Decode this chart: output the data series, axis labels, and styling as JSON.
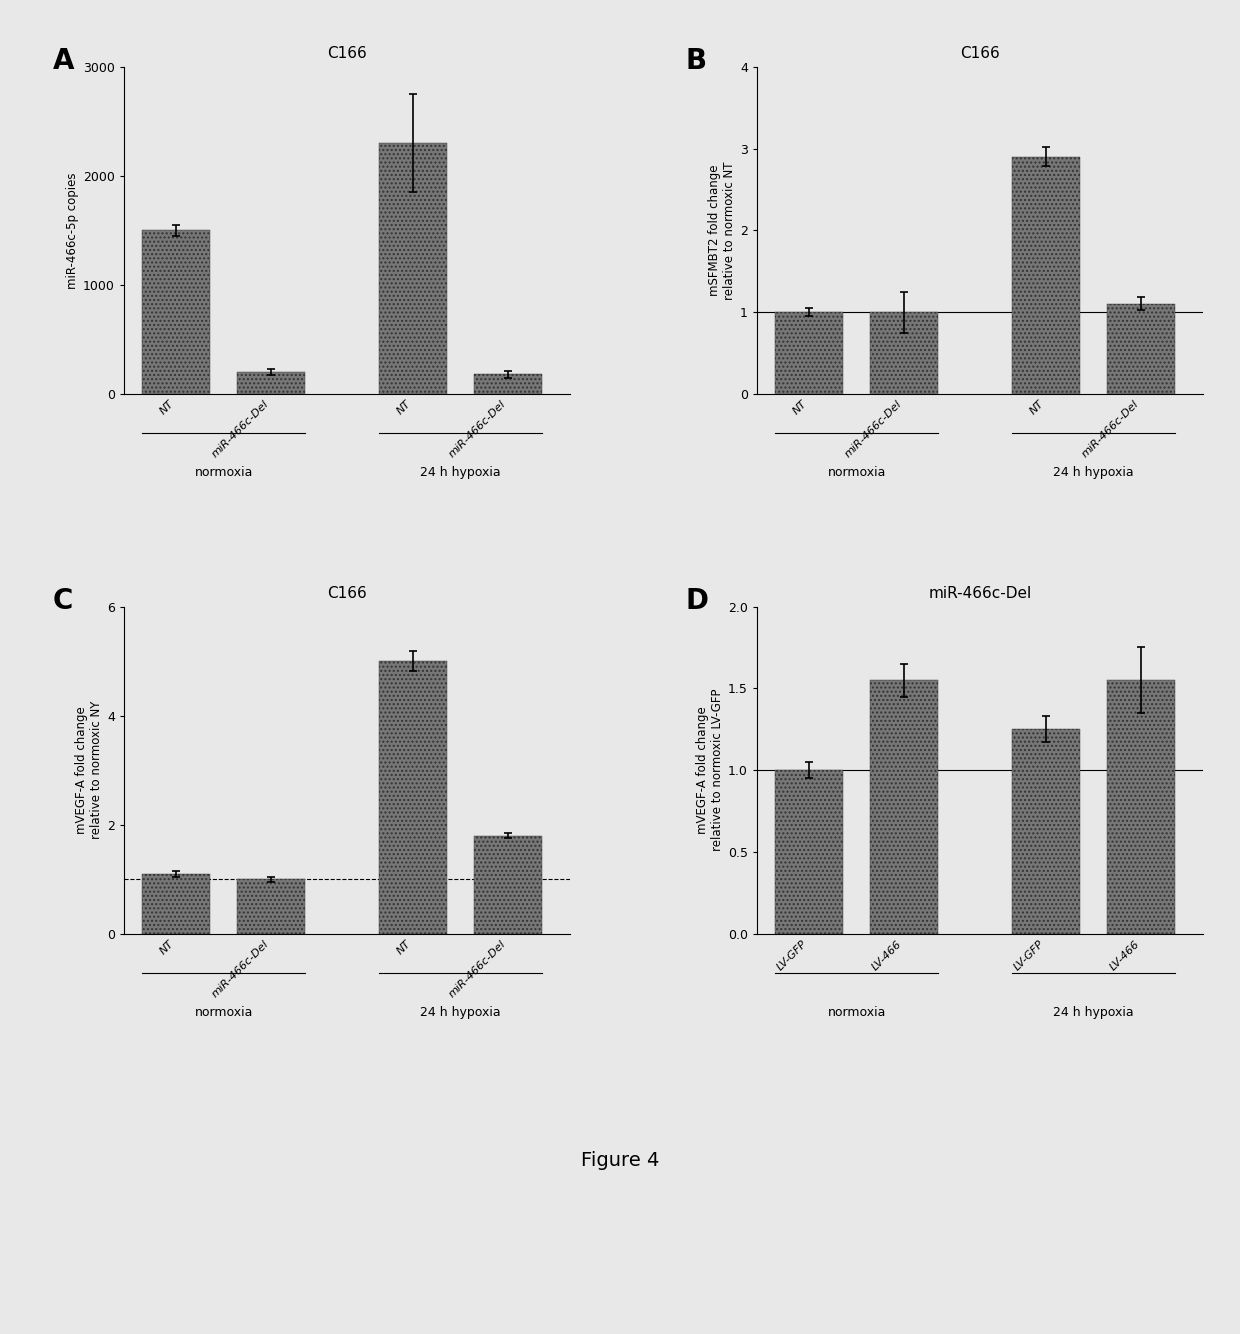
{
  "panel_A": {
    "title": "C166",
    "ylabel": "miR-466c-5p copies",
    "bar_values": [
      1500,
      200,
      2300,
      180
    ],
    "bar_errors": [
      50,
      30,
      450,
      30
    ],
    "bar_labels": [
      "NT",
      "miR-466c-Del",
      "NT",
      "miR-466c-Del"
    ],
    "group_labels": [
      "normoxia",
      "24 h hypoxia"
    ],
    "ylim": [
      0,
      3000
    ],
    "yticks": [
      0,
      1000,
      2000,
      3000
    ],
    "bar_color": "#888888",
    "label": "A"
  },
  "panel_B": {
    "title": "C166",
    "ylabel": "mSFMBT2 fold change\nrelative to normoxic NT",
    "bar_values": [
      1.0,
      1.0,
      2.9,
      1.1
    ],
    "bar_errors": [
      0.05,
      0.25,
      0.12,
      0.08
    ],
    "bar_labels": [
      "NT",
      "miR-466c-Del",
      "NT",
      "miR-466c-Del"
    ],
    "group_labels": [
      "normoxia",
      "24 h hypoxia"
    ],
    "ylim": [
      0,
      4
    ],
    "yticks": [
      0,
      1,
      2,
      3,
      4
    ],
    "hline": 1.0,
    "bar_color": "#888888",
    "label": "B"
  },
  "panel_C": {
    "title": "C166",
    "ylabel": "mVEGF-A fold change\nrelative to normoxic NY",
    "bar_values": [
      1.1,
      1.0,
      5.0,
      1.8
    ],
    "bar_errors": [
      0.05,
      0.05,
      0.18,
      0.05
    ],
    "bar_labels": [
      "NT",
      "miR-466c-Del",
      "NT",
      "miR-466c-Del"
    ],
    "group_labels": [
      "normoxia",
      "24 h hypoxia"
    ],
    "ylim": [
      0,
      6
    ],
    "yticks": [
      0,
      2,
      4,
      6
    ],
    "hline": 1.0,
    "hline_style": "dashed",
    "bar_color": "#888888",
    "label": "C"
  },
  "panel_D": {
    "title": "miR-466c-Del",
    "ylabel": "mVEGF-A fold change\nrelative to normoxic LV-GFP",
    "bar_values": [
      1.0,
      1.55,
      1.25,
      1.55
    ],
    "bar_errors": [
      0.05,
      0.1,
      0.08,
      0.2
    ],
    "bar_labels": [
      "LV-GFP",
      "LV-466",
      "LV-GFP",
      "LV-466"
    ],
    "group_labels": [
      "normoxia",
      "24 h hypoxia"
    ],
    "ylim": [
      0.0,
      2.0
    ],
    "yticks": [
      0.0,
      0.5,
      1.0,
      1.5,
      2.0
    ],
    "hline": 1.0,
    "hline_style": "solid",
    "bar_color": "#888888",
    "label": "D"
  },
  "figure_label": "Figure 4",
  "bg_color": "#e8e8e8"
}
